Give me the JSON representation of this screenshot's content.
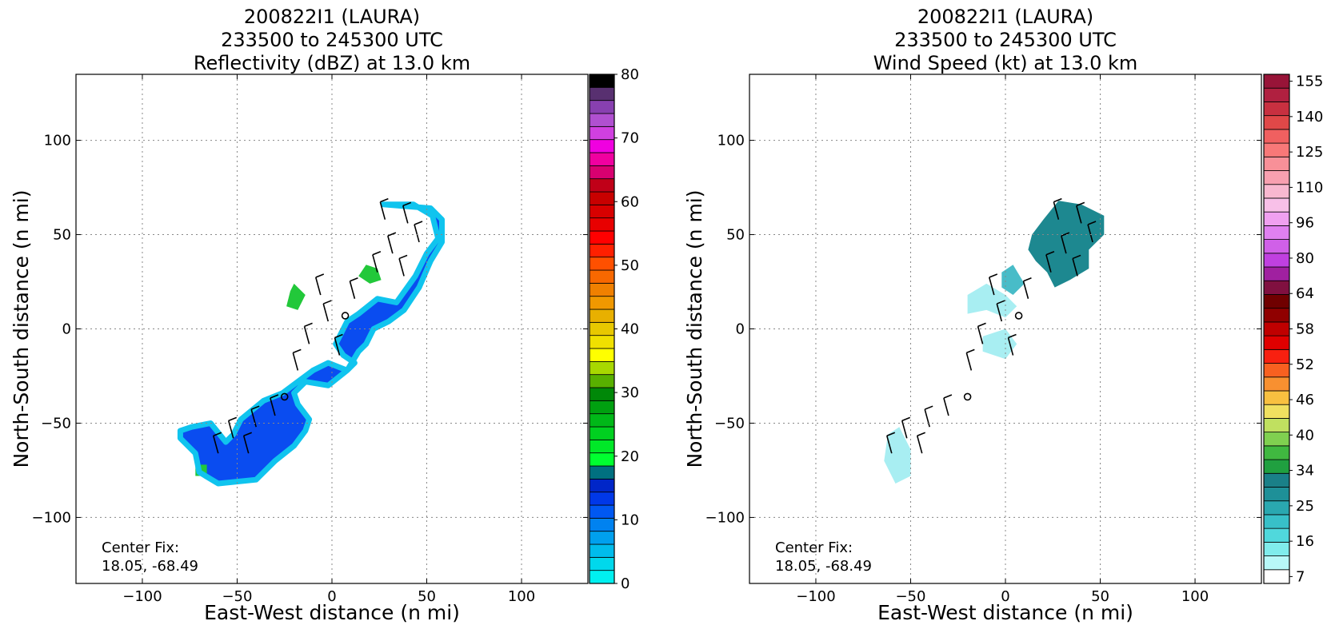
{
  "panels": [
    {
      "title_lines": [
        "200822I1 (LAURA)",
        "233500 to 245300 UTC",
        "Reflectivity (dBZ) at 13.0 km"
      ],
      "xlabel": "East-West distance (n mi)",
      "ylabel": "North-South distance (n mi)",
      "center_fix_label": "Center Fix:",
      "center_fix_value": "18.05, -68.49",
      "colorbar_ticks": [
        "0",
        "10",
        "20",
        "30",
        "40",
        "50",
        "60",
        "70",
        "80"
      ]
    },
    {
      "title_lines": [
        "200822I1 (LAURA)",
        "233500 to 245300 UTC",
        "Wind Speed (kt) at 13.0 km"
      ],
      "xlabel": "East-West distance (n mi)",
      "ylabel": "North-South distance (n mi)",
      "center_fix_label": "Center Fix:",
      "center_fix_value": "18.05, -68.49",
      "colorbar_ticks": [
        "7",
        "16",
        "25",
        "34",
        "40",
        "46",
        "52",
        "58",
        "64",
        "80",
        "96",
        "110",
        "125",
        "140",
        "155"
      ]
    }
  ],
  "chart_data": [
    {
      "type": "heatmap",
      "title": "200822I1 (LAURA) 233500 to 245300 UTC Reflectivity (dBZ) at 13.0 km",
      "xlabel": "East-West distance (n mi)",
      "ylabel": "North-South distance (n mi)",
      "xlim": [
        -135,
        135
      ],
      "ylim": [
        -135,
        135
      ],
      "xticks": [
        -100,
        -50,
        0,
        50,
        100
      ],
      "yticks": [
        -100,
        -50,
        0,
        50,
        100
      ],
      "grid": true,
      "colorbar": {
        "ticks": [
          0,
          10,
          20,
          30,
          40,
          50,
          60,
          70,
          80
        ],
        "colors": [
          "#00f0f0",
          "#00d8ec",
          "#00bcec",
          "#00a0ee",
          "#0082f0",
          "#0058f2",
          "#0038e8",
          "#0026c8",
          "#007080",
          "#00ff30",
          "#00e828",
          "#00d020",
          "#00b818",
          "#00a010",
          "#008808",
          "#58b000",
          "#a8d800",
          "#ffff00",
          "#f0e000",
          "#e8c800",
          "#e8b000",
          "#f09800",
          "#f08000",
          "#f86800",
          "#ff5000",
          "#ff2000",
          "#ff0000",
          "#e80000",
          "#d80000",
          "#c80000",
          "#c00018",
          "#d80070",
          "#f000a0",
          "#f000e0",
          "#d040e0",
          "#b050d0",
          "#8840b0",
          "#583070",
          "#000000"
        ]
      },
      "echo_regions": [
        {
          "level": "5-15 dBZ",
          "polygon": [
            [
              27,
              66
            ],
            [
              43,
              66
            ],
            [
              53,
              60
            ],
            [
              56,
              48
            ],
            [
              50,
              40
            ],
            [
              44,
              28
            ],
            [
              34,
              14
            ],
            [
              24,
              16
            ],
            [
              14,
              8
            ],
            [
              8,
              4
            ],
            [
              2,
              -8
            ],
            [
              6,
              -14
            ],
            [
              12,
              -18
            ],
            [
              8,
              -22
            ],
            [
              -2,
              -18
            ],
            [
              -10,
              -22
            ],
            [
              -18,
              -28
            ],
            [
              -26,
              -34
            ],
            [
              -36,
              -38
            ],
            [
              -48,
              -48
            ],
            [
              -52,
              -56
            ],
            [
              -56,
              -60
            ],
            [
              -64,
              -50
            ],
            [
              -74,
              -52
            ],
            [
              -80,
              -54
            ],
            [
              -80,
              -58
            ],
            [
              -72,
              -66
            ],
            [
              -70,
              -76
            ],
            [
              -60,
              -82
            ],
            [
              -40,
              -80
            ],
            [
              -30,
              -70
            ],
            [
              -20,
              -62
            ],
            [
              -14,
              -54
            ],
            [
              -12,
              -48
            ],
            [
              -18,
              -40
            ],
            [
              -20,
              -34
            ],
            [
              -14,
              -28
            ],
            [
              -2,
              -30
            ],
            [
              8,
              -22
            ],
            [
              14,
              -12
            ],
            [
              18,
              -8
            ],
            [
              22,
              0
            ],
            [
              30,
              4
            ],
            [
              38,
              10
            ],
            [
              46,
              22
            ],
            [
              52,
              36
            ],
            [
              58,
              46
            ],
            [
              58,
              58
            ],
            [
              52,
              64
            ]
          ]
        },
        {
          "level": "15-25 dBZ",
          "polygon": [
            [
              18,
              34
            ],
            [
              24,
              32
            ],
            [
              26,
              26
            ],
            [
              20,
              24
            ],
            [
              14,
              28
            ]
          ]
        },
        {
          "level": "15-25 dBZ",
          "polygon": [
            [
              -20,
              24
            ],
            [
              -14,
              18
            ],
            [
              -18,
              10
            ],
            [
              -24,
              12
            ],
            [
              -22,
              20
            ]
          ]
        },
        {
          "level": "15-25 dBZ",
          "polygon": [
            [
              -72,
              -72
            ],
            [
              -66,
              -72
            ],
            [
              -66,
              -78
            ],
            [
              -72,
              -78
            ]
          ]
        }
      ],
      "center_fix": [
        -25,
        -36
      ],
      "center_fix_text": "Center Fix: 18.05, -68.49"
    },
    {
      "type": "heatmap",
      "title": "200822I1 (LAURA) 233500 to 245300 UTC Wind Speed (kt) at 13.0 km",
      "xlabel": "East-West distance (n mi)",
      "ylabel": "North-South distance (n mi)",
      "xlim": [
        -135,
        135
      ],
      "ylim": [
        -135,
        135
      ],
      "xticks": [
        -100,
        -50,
        0,
        50,
        100
      ],
      "yticks": [
        -100,
        -50,
        0,
        50,
        100
      ],
      "grid": true,
      "colorbar": {
        "ticks": [
          7,
          16,
          25,
          34,
          40,
          46,
          52,
          58,
          64,
          80,
          96,
          110,
          125,
          140,
          155
        ],
        "colors": [
          "#ffffff",
          "#b8f8f8",
          "#80ecec",
          "#50d8dc",
          "#38c0c8",
          "#2aa8b0",
          "#1e9098",
          "#1a8088",
          "#20a040",
          "#40b840",
          "#80d050",
          "#c0e060",
          "#f0e060",
          "#f8c040",
          "#f89030",
          "#f86020",
          "#f82010",
          "#e00000",
          "#c00000",
          "#900000",
          "#700000",
          "#801040",
          "#a020a0",
          "#c040e0",
          "#d060e8",
          "#e080f0",
          "#f0a0f0",
          "#f8c0e8",
          "#f8b8d0",
          "#f8a0b0",
          "#f89098",
          "#f87878",
          "#f06060",
          "#e04848",
          "#c83040",
          "#b02040",
          "#981438"
        ]
      },
      "wind_regions": [
        {
          "level": "25-34 kt",
          "polygon": [
            [
              20,
              58
            ],
            [
              28,
              68
            ],
            [
              40,
              66
            ],
            [
              52,
              60
            ],
            [
              52,
              50
            ],
            [
              44,
              42
            ],
            [
              44,
              32
            ],
            [
              34,
              26
            ],
            [
              26,
              22
            ],
            [
              22,
              30
            ],
            [
              16,
              36
            ],
            [
              12,
              42
            ],
            [
              14,
              50
            ]
          ]
        },
        {
          "level": "16-25 kt",
          "polygon": [
            [
              -2,
              30
            ],
            [
              4,
              34
            ],
            [
              10,
              24
            ],
            [
              4,
              18
            ],
            [
              -2,
              22
            ]
          ]
        },
        {
          "level": "7-16 kt",
          "polygon": [
            [
              -20,
              18
            ],
            [
              -10,
              24
            ],
            [
              0,
              18
            ],
            [
              6,
              12
            ],
            [
              0,
              6
            ],
            [
              -10,
              10
            ],
            [
              -20,
              8
            ]
          ]
        },
        {
          "level": "7-16 kt",
          "polygon": [
            [
              -12,
              -4
            ],
            [
              0,
              0
            ],
            [
              6,
              -8
            ],
            [
              0,
              -16
            ],
            [
              -12,
              -12
            ]
          ]
        },
        {
          "level": "7-16 kt",
          "polygon": [
            [
              -62,
              -56
            ],
            [
              -56,
              -52
            ],
            [
              -50,
              -64
            ],
            [
              -50,
              -78
            ],
            [
              -58,
              -82
            ],
            [
              -64,
              -70
            ]
          ]
        }
      ],
      "center_fix": [
        -20,
        -36
      ],
      "center_fix_text": "Center Fix: 18.05, -68.49"
    }
  ]
}
